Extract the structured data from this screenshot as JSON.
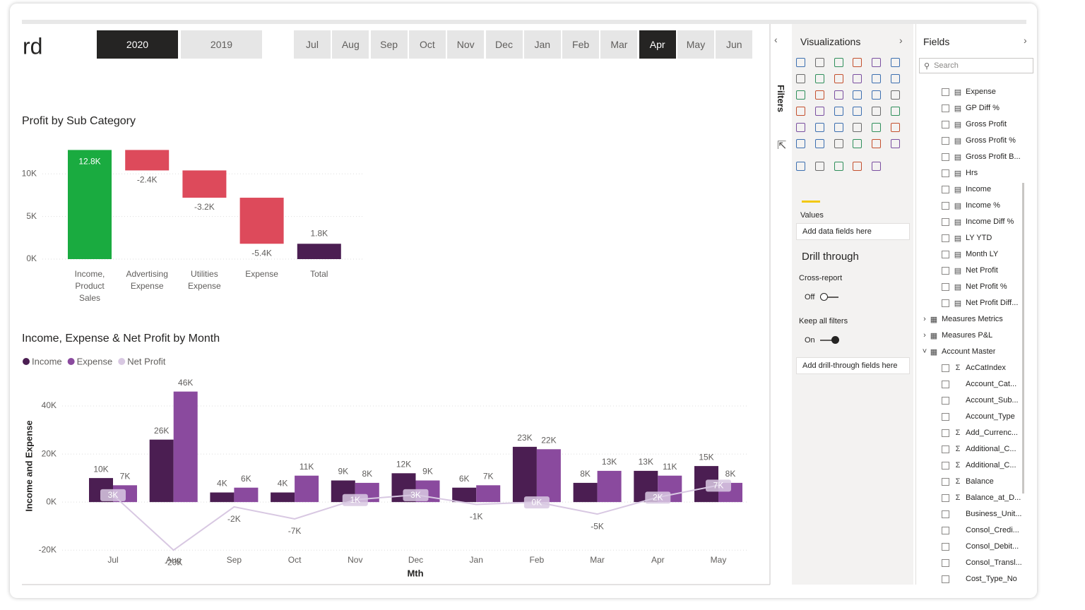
{
  "header": {
    "title": "rd",
    "years": [
      {
        "label": "2020",
        "selected": true
      },
      {
        "label": "2019",
        "selected": false
      }
    ],
    "months": [
      {
        "label": "Jul",
        "selected": false
      },
      {
        "label": "Aug",
        "selected": false
      },
      {
        "label": "Sep",
        "selected": false
      },
      {
        "label": "Oct",
        "selected": false
      },
      {
        "label": "Nov",
        "selected": false
      },
      {
        "label": "Dec",
        "selected": false
      },
      {
        "label": "Jan",
        "selected": false
      },
      {
        "label": "Feb",
        "selected": false
      },
      {
        "label": "Mar",
        "selected": false
      },
      {
        "label": "Apr",
        "selected": true
      },
      {
        "label": "May",
        "selected": false
      },
      {
        "label": "Jun",
        "selected": false
      }
    ]
  },
  "chart_data": [
    {
      "type": "waterfall",
      "title": "Profit by Sub Category",
      "categories": [
        "Income, Product Sales",
        "Advertising Expense",
        "Utilities Expense",
        "Expense",
        "Total"
      ],
      "values": [
        12800,
        -2400,
        -3200,
        -5400,
        1800
      ],
      "value_labels": [
        "12.8K",
        "-2.4K",
        "-3.2K",
        "-5.4K",
        "1.8K"
      ],
      "is_total": [
        false,
        false,
        false,
        false,
        true
      ],
      "increase_color": "#1aab40",
      "decrease_color": "#dd4a5b",
      "total_color": "#4b1e52",
      "ylim": [
        0,
        13000
      ],
      "yticks": [
        {
          "value": 0,
          "label": "0K"
        },
        {
          "value": 5000,
          "label": "5K"
        },
        {
          "value": 10000,
          "label": "10K"
        }
      ],
      "grid": true
    },
    {
      "type": "combo",
      "title": "Income, Expense & Net Profit by Month",
      "ylabel": "Income and Expense",
      "xlabel": "Mth",
      "categories": [
        "Jul",
        "Aug",
        "Sep",
        "Oct",
        "Nov",
        "Dec",
        "Jan",
        "Feb",
        "Mar",
        "Apr",
        "May"
      ],
      "series": [
        {
          "name": "Income",
          "kind": "bar",
          "color": "#4b1e52",
          "values": [
            10000,
            26000,
            4000,
            4000,
            9000,
            12000,
            6000,
            23000,
            8000,
            13000,
            15000
          ],
          "value_labels": [
            "10K",
            "26K",
            "4K",
            "4K",
            "9K",
            "12K",
            "6K",
            "23K",
            "8K",
            "13K",
            "15K"
          ]
        },
        {
          "name": "Expense",
          "kind": "bar",
          "color": "#8a4a9e",
          "values": [
            7000,
            46000,
            6000,
            11000,
            8000,
            9000,
            7000,
            22000,
            13000,
            11000,
            8000
          ],
          "value_labels": [
            "7K",
            "46K",
            "6K",
            "11K",
            "8K",
            "9K",
            "7K",
            "22K",
            "13K",
            "11K",
            "8K"
          ]
        },
        {
          "name": "Net Profit",
          "kind": "line",
          "color": "#d8c8e2",
          "values": [
            3000,
            -20000,
            -2000,
            -7000,
            1000,
            3000,
            -1000,
            0,
            -5000,
            2000,
            7000
          ],
          "value_labels": [
            "3K",
            "-20K",
            "-2K",
            "-7K",
            "1K",
            "3K",
            "-1K",
            "0K",
            "-5K",
            "2K",
            "7K"
          ]
        }
      ],
      "ylim": [
        -22000,
        50000
      ],
      "yticks": [
        {
          "value": -20000,
          "label": "-20K"
        },
        {
          "value": 0,
          "label": "0K"
        },
        {
          "value": 20000,
          "label": "20K"
        },
        {
          "value": 40000,
          "label": "40K"
        }
      ],
      "grid": true,
      "legend": "top-left"
    }
  ],
  "filters_pane": {
    "label": "Filters"
  },
  "visualizations_pane": {
    "title": "Visualizations",
    "values_label": "Values",
    "values_placeholder": "Add data fields here",
    "drill_through": {
      "title": "Drill through",
      "cross_report": {
        "label": "Cross-report",
        "state": "Off",
        "on": false
      },
      "keep_all_filters": {
        "label": "Keep all filters",
        "state": "On",
        "on": true
      },
      "placeholder": "Add drill-through fields here"
    }
  },
  "fields_pane": {
    "title": "Fields",
    "search_placeholder": "Search",
    "items": [
      {
        "label": "Expense",
        "kind": "measure"
      },
      {
        "label": "GP Diff %",
        "kind": "measure"
      },
      {
        "label": "Gross Profit",
        "kind": "measure"
      },
      {
        "label": "Gross Profit %",
        "kind": "measure"
      },
      {
        "label": "Gross Profit B...",
        "kind": "measure"
      },
      {
        "label": "Hrs",
        "kind": "measure"
      },
      {
        "label": "Income",
        "kind": "measure"
      },
      {
        "label": "Income %",
        "kind": "measure"
      },
      {
        "label": "Income Diff %",
        "kind": "measure"
      },
      {
        "label": "LY YTD",
        "kind": "measure"
      },
      {
        "label": "Month LY",
        "kind": "measure"
      },
      {
        "label": "Net Profit",
        "kind": "measure"
      },
      {
        "label": "Net Profit %",
        "kind": "measure"
      },
      {
        "label": "Net Profit Diff...",
        "kind": "measure"
      },
      {
        "label": "Measures Metrics",
        "kind": "table",
        "expanded": false
      },
      {
        "label": "Measures P&L",
        "kind": "table",
        "expanded": false
      },
      {
        "label": "Account Master",
        "kind": "table",
        "expanded": true
      },
      {
        "label": "AcCatIndex",
        "kind": "sum"
      },
      {
        "label": "Account_Cat...",
        "kind": "column"
      },
      {
        "label": "Account_Sub...",
        "kind": "column"
      },
      {
        "label": "Account_Type",
        "kind": "column"
      },
      {
        "label": "Add_Currenc...",
        "kind": "sum"
      },
      {
        "label": "Additional_C...",
        "kind": "sum"
      },
      {
        "label": "Additional_C...",
        "kind": "sum"
      },
      {
        "label": "Balance",
        "kind": "sum"
      },
      {
        "label": "Balance_at_D...",
        "kind": "sum"
      },
      {
        "label": "Business_Unit...",
        "kind": "column"
      },
      {
        "label": "Consol_Credi...",
        "kind": "column"
      },
      {
        "label": "Consol_Debit...",
        "kind": "column"
      },
      {
        "label": "Consol_Transl...",
        "kind": "column"
      },
      {
        "label": "Cost_Type_No",
        "kind": "column"
      }
    ]
  }
}
